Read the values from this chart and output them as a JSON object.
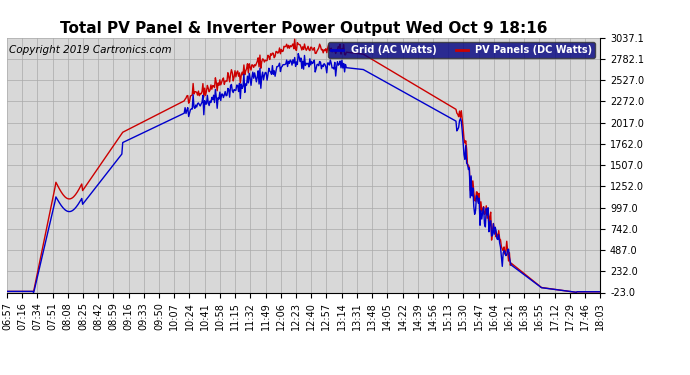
{
  "title": "Total PV Panel & Inverter Power Output Wed Oct 9 18:16",
  "copyright": "Copyright 2019 Cartronics.com",
  "legend_labels": [
    "Grid (AC Watts)",
    "PV Panels (DC Watts)"
  ],
  "legend_colors": [
    "#0000cc",
    "#cc0000"
  ],
  "legend_bg": "#000080",
  "grid_color": "#aaaaaa",
  "bg_color": "#ffffff",
  "plot_bg": "#d8d8d8",
  "y_ticks": [
    -23.0,
    232.0,
    487.0,
    742.0,
    997.0,
    1252.0,
    1507.0,
    1762.0,
    2017.0,
    2272.0,
    2527.0,
    2782.1,
    3037.1
  ],
  "ylim": [
    -23.0,
    3037.1
  ],
  "x_labels": [
    "06:57",
    "07:16",
    "07:34",
    "07:51",
    "08:08",
    "08:25",
    "08:42",
    "08:59",
    "09:16",
    "09:33",
    "09:50",
    "10:07",
    "10:24",
    "10:41",
    "10:58",
    "11:15",
    "11:32",
    "11:49",
    "12:06",
    "12:23",
    "12:40",
    "12:57",
    "13:14",
    "13:31",
    "13:48",
    "14:05",
    "14:22",
    "14:39",
    "14:56",
    "15:13",
    "15:30",
    "15:47",
    "16:04",
    "16:21",
    "16:38",
    "16:55",
    "17:12",
    "17:29",
    "17:46",
    "18:03"
  ],
  "title_fontsize": 11,
  "tick_fontsize": 7,
  "copyright_fontsize": 7.5,
  "line_width": 1.0
}
